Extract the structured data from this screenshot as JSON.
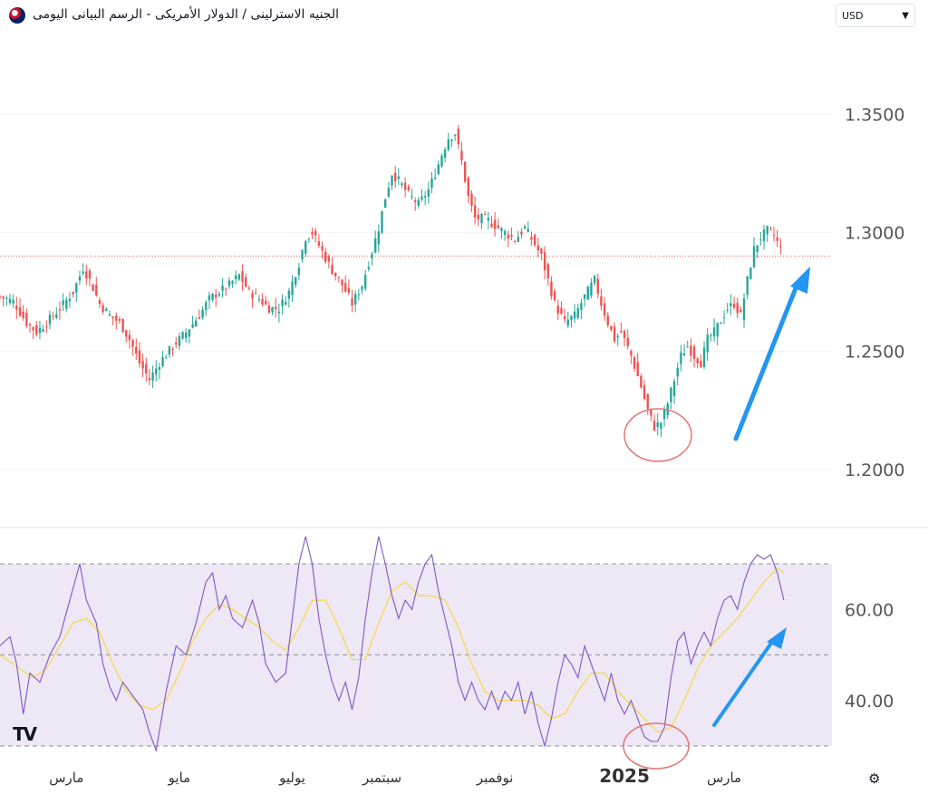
{
  "header": {
    "title": "الجنيه الاسترلينى / الدولار الأمريكى - الرسم البيانى اليومى",
    "currency": "USD"
  },
  "logo_text": "TV",
  "icons": {
    "flag": "gbp-usd-flag-icon",
    "chevron": "chevron-down-icon",
    "settings": "settings-gear-icon"
  },
  "colors": {
    "up": "#26a69a",
    "down": "#ef5350",
    "rsi_line": "#7e57c2",
    "rsi_ma": "#f9d74c",
    "arrow": "#2196f3",
    "circle": "#e57373",
    "rsi_band": "#ede7f6"
  },
  "chart_data": [
    {
      "type": "candlestick",
      "title": "",
      "ylim": [
        1.18,
        1.375
      ],
      "yticks": [
        "1.3500",
        "1.3000",
        "1.2500",
        "1.2000"
      ],
      "ytick_values": [
        1.35,
        1.3,
        1.25,
        1.2
      ],
      "current_price_line": 1.29,
      "grid": true,
      "anchors": [
        [
          0,
          1.273
        ],
        [
          4,
          1.271
        ],
        [
          8,
          1.262
        ],
        [
          11,
          1.258
        ],
        [
          14,
          1.262
        ],
        [
          18,
          1.268
        ],
        [
          22,
          1.275
        ],
        [
          25,
          1.285
        ],
        [
          27,
          1.28
        ],
        [
          30,
          1.27
        ],
        [
          33,
          1.265
        ],
        [
          36,
          1.262
        ],
        [
          39,
          1.255
        ],
        [
          42,
          1.245
        ],
        [
          45,
          1.238
        ],
        [
          48,
          1.245
        ],
        [
          52,
          1.252
        ],
        [
          56,
          1.258
        ],
        [
          60,
          1.265
        ],
        [
          63,
          1.272
        ],
        [
          66,
          1.275
        ],
        [
          69,
          1.278
        ],
        [
          72,
          1.282
        ],
        [
          75,
          1.275
        ],
        [
          78,
          1.272
        ],
        [
          81,
          1.268
        ],
        [
          84,
          1.268
        ],
        [
          87,
          1.275
        ],
        [
          90,
          1.287
        ],
        [
          92,
          1.298
        ],
        [
          94,
          1.3
        ],
        [
          97,
          1.292
        ],
        [
          100,
          1.284
        ],
        [
          103,
          1.278
        ],
        [
          106,
          1.27
        ],
        [
          109,
          1.278
        ],
        [
          112,
          1.292
        ],
        [
          114,
          1.302
        ],
        [
          116,
          1.315
        ],
        [
          118,
          1.325
        ],
        [
          120,
          1.322
        ],
        [
          123,
          1.316
        ],
        [
          126,
          1.312
        ],
        [
          129,
          1.318
        ],
        [
          131,
          1.325
        ],
        [
          133,
          1.333
        ],
        [
          135,
          1.34
        ],
        [
          137,
          1.342
        ],
        [
          139,
          1.33
        ],
        [
          141,
          1.315
        ],
        [
          143,
          1.306
        ],
        [
          146,
          1.306
        ],
        [
          149,
          1.303
        ],
        [
          152,
          1.3
        ],
        [
          155,
          1.297
        ],
        [
          158,
          1.302
        ],
        [
          161,
          1.295
        ],
        [
          163,
          1.29
        ],
        [
          165,
          1.28
        ],
        [
          167,
          1.27
        ],
        [
          170,
          1.262
        ],
        [
          173,
          1.265
        ],
        [
          176,
          1.273
        ],
        [
          179,
          1.28
        ],
        [
          181,
          1.27
        ],
        [
          183,
          1.262
        ],
        [
          185,
          1.255
        ],
        [
          187,
          1.258
        ],
        [
          190,
          1.248
        ],
        [
          193,
          1.235
        ],
        [
          195,
          1.225
        ],
        [
          197,
          1.218
        ],
        [
          199,
          1.22
        ],
        [
          201,
          1.228
        ],
        [
          203,
          1.238
        ],
        [
          205,
          1.248
        ],
        [
          207,
          1.252
        ],
        [
          209,
          1.248
        ],
        [
          211,
          1.245
        ],
        [
          213,
          1.255
        ],
        [
          215,
          1.258
        ],
        [
          217,
          1.263
        ],
        [
          219,
          1.268
        ],
        [
          221,
          1.27
        ],
        [
          223,
          1.265
        ],
        [
          225,
          1.28
        ],
        [
          227,
          1.293
        ],
        [
          229,
          1.298
        ],
        [
          231,
          1.301
        ],
        [
          233,
          1.299
        ],
        [
          235,
          1.293
        ]
      ]
    },
    {
      "type": "line",
      "title": "",
      "ylim": [
        28,
        82
      ],
      "yticks": [
        "60.00",
        "40.00"
      ],
      "ytick_values": [
        60,
        40
      ],
      "bands": [
        70,
        50,
        30
      ],
      "series_line": [
        [
          0,
          52
        ],
        [
          3,
          54
        ],
        [
          5,
          48
        ],
        [
          7,
          37
        ],
        [
          9,
          46
        ],
        [
          12,
          44
        ],
        [
          15,
          50
        ],
        [
          18,
          54
        ],
        [
          21,
          62
        ],
        [
          24,
          70
        ],
        [
          26,
          62
        ],
        [
          29,
          57
        ],
        [
          31,
          48
        ],
        [
          33,
          43
        ],
        [
          35,
          40
        ],
        [
          37,
          44
        ],
        [
          40,
          41
        ],
        [
          43,
          38
        ],
        [
          45,
          33
        ],
        [
          47,
          29
        ],
        [
          50,
          42
        ],
        [
          53,
          52
        ],
        [
          56,
          50
        ],
        [
          59,
          57
        ],
        [
          62,
          66
        ],
        [
          64,
          68
        ],
        [
          66,
          60
        ],
        [
          68,
          63
        ],
        [
          70,
          58
        ],
        [
          73,
          56
        ],
        [
          76,
          62
        ],
        [
          78,
          57
        ],
        [
          80,
          48
        ],
        [
          83,
          44
        ],
        [
          86,
          46
        ],
        [
          88,
          58
        ],
        [
          90,
          70
        ],
        [
          92,
          76
        ],
        [
          94,
          70
        ],
        [
          96,
          58
        ],
        [
          98,
          50
        ],
        [
          100,
          44
        ],
        [
          102,
          40
        ],
        [
          104,
          44
        ],
        [
          106,
          38
        ],
        [
          108,
          45
        ],
        [
          110,
          58
        ],
        [
          112,
          68
        ],
        [
          114,
          76
        ],
        [
          116,
          70
        ],
        [
          118,
          63
        ],
        [
          120,
          58
        ],
        [
          122,
          62
        ],
        [
          124,
          60
        ],
        [
          126,
          66
        ],
        [
          128,
          70
        ],
        [
          130,
          72
        ],
        [
          132,
          64
        ],
        [
          134,
          58
        ],
        [
          136,
          52
        ],
        [
          138,
          44
        ],
        [
          140,
          40
        ],
        [
          142,
          44
        ],
        [
          144,
          40
        ],
        [
          146,
          38
        ],
        [
          148,
          42
        ],
        [
          150,
          38
        ],
        [
          152,
          42
        ],
        [
          154,
          40
        ],
        [
          156,
          44
        ],
        [
          158,
          37
        ],
        [
          160,
          42
        ],
        [
          162,
          35
        ],
        [
          164,
          30
        ],
        [
          166,
          36
        ],
        [
          168,
          44
        ],
        [
          170,
          50
        ],
        [
          172,
          48
        ],
        [
          174,
          45
        ],
        [
          176,
          52
        ],
        [
          178,
          48
        ],
        [
          180,
          44
        ],
        [
          182,
          40
        ],
        [
          184,
          46
        ],
        [
          186,
          40
        ],
        [
          188,
          37
        ],
        [
          190,
          40
        ],
        [
          192,
          36
        ],
        [
          194,
          32
        ],
        [
          196,
          31
        ],
        [
          198,
          31
        ],
        [
          200,
          34
        ],
        [
          202,
          45
        ],
        [
          204,
          53
        ],
        [
          206,
          55
        ],
        [
          208,
          48
        ],
        [
          210,
          52
        ],
        [
          212,
          55
        ],
        [
          214,
          52
        ],
        [
          216,
          58
        ],
        [
          218,
          62
        ],
        [
          220,
          63
        ],
        [
          222,
          60
        ],
        [
          224,
          66
        ],
        [
          226,
          70
        ],
        [
          228,
          72
        ],
        [
          230,
          71
        ],
        [
          232,
          72
        ],
        [
          234,
          68
        ],
        [
          236,
          62
        ]
      ],
      "series_ma": [
        [
          0,
          50
        ],
        [
          6,
          47
        ],
        [
          10,
          45
        ],
        [
          14,
          47
        ],
        [
          18,
          52
        ],
        [
          22,
          57
        ],
        [
          26,
          58
        ],
        [
          30,
          55
        ],
        [
          34,
          48
        ],
        [
          38,
          42
        ],
        [
          42,
          39
        ],
        [
          46,
          38
        ],
        [
          50,
          40
        ],
        [
          54,
          46
        ],
        [
          58,
          53
        ],
        [
          62,
          58
        ],
        [
          66,
          61
        ],
        [
          70,
          60
        ],
        [
          74,
          58
        ],
        [
          78,
          56
        ],
        [
          82,
          53
        ],
        [
          86,
          51
        ],
        [
          90,
          56
        ],
        [
          94,
          62
        ],
        [
          98,
          62
        ],
        [
          102,
          56
        ],
        [
          106,
          49
        ],
        [
          110,
          49
        ],
        [
          114,
          57
        ],
        [
          118,
          64
        ],
        [
          122,
          66
        ],
        [
          126,
          63
        ],
        [
          130,
          63
        ],
        [
          134,
          62
        ],
        [
          138,
          56
        ],
        [
          142,
          48
        ],
        [
          146,
          42
        ],
        [
          150,
          40
        ],
        [
          154,
          40
        ],
        [
          158,
          40
        ],
        [
          162,
          39
        ],
        [
          166,
          36
        ],
        [
          170,
          37
        ],
        [
          174,
          42
        ],
        [
          178,
          46
        ],
        [
          182,
          46
        ],
        [
          186,
          42
        ],
        [
          190,
          39
        ],
        [
          194,
          36
        ],
        [
          198,
          33
        ],
        [
          202,
          34
        ],
        [
          206,
          40
        ],
        [
          210,
          47
        ],
        [
          214,
          52
        ],
        [
          218,
          55
        ],
        [
          222,
          58
        ],
        [
          226,
          62
        ],
        [
          230,
          66
        ],
        [
          234,
          69
        ],
        [
          236,
          68
        ]
      ]
    }
  ],
  "x_axis": {
    "labels": [
      "مارس",
      "مايو",
      "يوليو",
      "سبتمبر",
      "نوفمبر",
      "2025",
      "مارس"
    ],
    "label_positions": [
      20,
      54,
      88,
      115,
      149,
      188,
      218
    ],
    "range": [
      0,
      236
    ]
  }
}
